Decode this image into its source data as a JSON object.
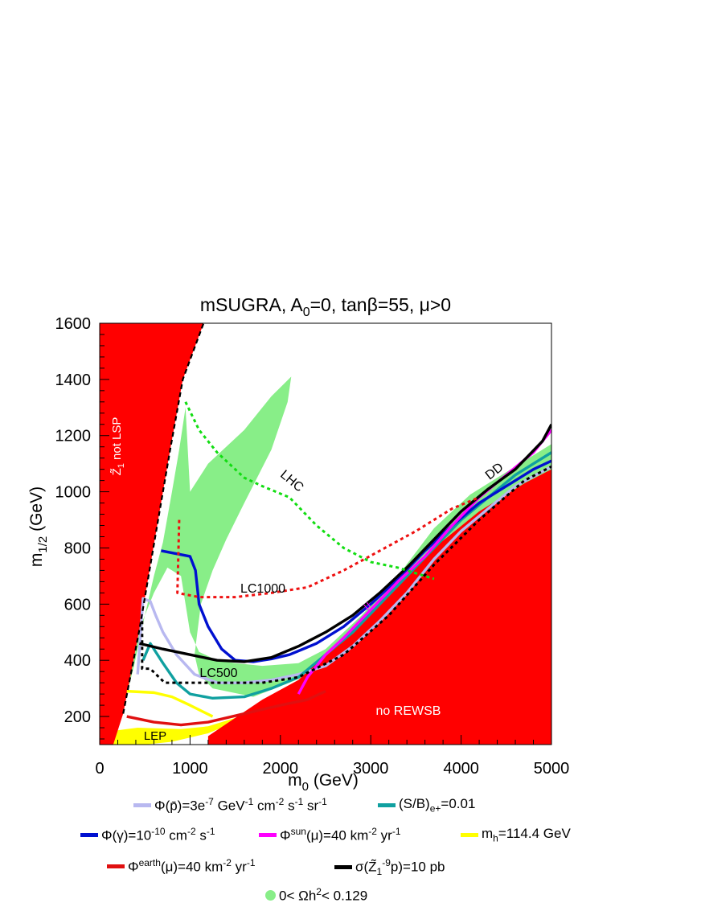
{
  "chart_data": {
    "type": "line",
    "title": "mSUGRA, A",
    "title_sub": "0",
    "title_rest": "=0, tanβ=55, μ>0",
    "xlabel": "m",
    "xlabel_sub": "0",
    "xlabel_rest": " (GeV)",
    "ylabel": "m",
    "ylabel_sub": "1/2",
    "ylabel_rest": " (GeV)",
    "xlim": [
      0,
      5000
    ],
    "ylim": [
      100,
      1600
    ],
    "xticks": [
      0,
      1000,
      2000,
      3000,
      4000,
      5000
    ],
    "yticks": [
      200,
      400,
      600,
      800,
      1000,
      1200,
      1400,
      1600
    ],
    "region_labels": {
      "lsp": "Z̃",
      "lsp_sub": "1",
      "lsp_rest": " not LSP",
      "rewsb": "no REWSB",
      "lep": "LEP",
      "lhc": "LHC",
      "lc1000": "LC1000",
      "lc500": "LC500",
      "dd": "DD",
      "mu": "μ"
    },
    "colors": {
      "excluded": "#ff0000",
      "relic": "#88ee88",
      "lep": "#ffff00",
      "pbar": "#b8b8f0",
      "sb": "#10a0a0",
      "gamma": "#0010d0",
      "musun": "#ff00ff",
      "mh": "#ffff00",
      "muearth": "#e01010",
      "dd": "#000000",
      "lhc": "#11dd11",
      "lc1000": "#ee1010",
      "lc500": "#000000"
    },
    "excluded_lsp": [
      [
        0,
        100
      ],
      [
        150,
        100
      ],
      [
        260,
        210
      ],
      [
        440,
        510
      ],
      [
        620,
        850
      ],
      [
        780,
        1150
      ],
      [
        920,
        1400
      ],
      [
        1150,
        1600
      ],
      [
        0,
        1600
      ]
    ],
    "excluded_rewsb": [
      [
        1200,
        130
      ],
      [
        1800,
        260
      ],
      [
        2200,
        330
      ],
      [
        2700,
        480
      ],
      [
        3200,
        640
      ],
      [
        3700,
        800
      ],
      [
        4200,
        930
      ],
      [
        4700,
        1030
      ],
      [
        5000,
        1080
      ],
      [
        5000,
        100
      ],
      [
        1200,
        100
      ]
    ],
    "lep_region": [
      [
        130,
        100
      ],
      [
        180,
        150
      ],
      [
        420,
        160
      ],
      [
        900,
        155
      ],
      [
        1200,
        165
      ],
      [
        1700,
        215
      ],
      [
        2200,
        280
      ],
      [
        2700,
        420
      ],
      [
        3200,
        600
      ],
      [
        3000,
        580
      ],
      [
        2500,
        350
      ],
      [
        2000,
        250
      ],
      [
        1500,
        180
      ],
      [
        1200,
        140
      ],
      [
        800,
        110
      ],
      [
        500,
        100
      ]
    ],
    "relic_main": [
      [
        240,
        200
      ],
      [
        380,
        380
      ],
      [
        500,
        560
      ],
      [
        600,
        700
      ],
      [
        700,
        820
      ],
      [
        800,
        1000
      ],
      [
        880,
        1150
      ],
      [
        950,
        1300
      ],
      [
        1000,
        1000
      ],
      [
        1200,
        1100
      ],
      [
        1600,
        1220
      ],
      [
        1900,
        1340
      ],
      [
        2120,
        1410
      ],
      [
        2080,
        1320
      ],
      [
        1900,
        1150
      ],
      [
        1600,
        960
      ],
      [
        1400,
        830
      ],
      [
        1250,
        720
      ],
      [
        1120,
        600
      ],
      [
        1050,
        420
      ],
      [
        1100,
        350
      ],
      [
        1250,
        300
      ],
      [
        1700,
        270
      ],
      [
        2100,
        320
      ],
      [
        2400,
        360
      ],
      [
        2900,
        490
      ],
      [
        3300,
        620
      ],
      [
        3700,
        770
      ],
      [
        4100,
        890
      ],
      [
        4500,
        980
      ],
      [
        5000,
        1080
      ],
      [
        5000,
        1170
      ],
      [
        4500,
        1070
      ],
      [
        4100,
        990
      ],
      [
        3700,
        870
      ],
      [
        3300,
        700
      ],
      [
        2900,
        560
      ],
      [
        2500,
        440
      ],
      [
        2200,
        390
      ],
      [
        1800,
        380
      ],
      [
        1500,
        390
      ],
      [
        1300,
        400
      ],
      [
        1100,
        430
      ],
      [
        1000,
        500
      ],
      [
        900,
        700
      ],
      [
        750,
        730
      ],
      [
        600,
        640
      ],
      [
        450,
        520
      ],
      [
        300,
        280
      ],
      [
        230,
        200
      ]
    ],
    "series": [
      {
        "key": "pbar",
        "dash": false,
        "points": [
          [
            420,
            350
          ],
          [
            480,
            620
          ],
          [
            560,
            610
          ],
          [
            620,
            560
          ],
          [
            700,
            500
          ],
          [
            850,
            420
          ],
          [
            1050,
            350
          ],
          [
            1300,
            320
          ],
          [
            1600,
            320
          ],
          [
            1900,
            330
          ],
          [
            2200,
            350
          ],
          [
            2500,
            380
          ],
          [
            2800,
            450
          ],
          [
            3100,
            540
          ],
          [
            3400,
            640
          ],
          [
            3700,
            760
          ],
          [
            4000,
            860
          ],
          [
            4300,
            940
          ],
          [
            4600,
            1020
          ],
          [
            5000,
            1090
          ]
        ]
      },
      {
        "key": "sb",
        "dash": false,
        "points": [
          [
            480,
            400
          ],
          [
            560,
            460
          ],
          [
            700,
            390
          ],
          [
            850,
            320
          ],
          [
            1000,
            280
          ],
          [
            1250,
            265
          ],
          [
            1600,
            270
          ],
          [
            1900,
            300
          ],
          [
            2200,
            340
          ],
          [
            2500,
            420
          ],
          [
            2800,
            500
          ],
          [
            3100,
            600
          ],
          [
            3400,
            700
          ],
          [
            3700,
            800
          ],
          [
            4000,
            900
          ],
          [
            4300,
            980
          ],
          [
            4600,
            1060
          ],
          [
            5000,
            1140
          ]
        ]
      },
      {
        "key": "gamma",
        "dash": false,
        "points": [
          [
            680,
            790
          ],
          [
            1000,
            770
          ],
          [
            1060,
            720
          ],
          [
            1100,
            600
          ],
          [
            1200,
            520
          ],
          [
            1350,
            440
          ],
          [
            1500,
            400
          ],
          [
            1700,
            395
          ],
          [
            1900,
            405
          ],
          [
            2100,
            420
          ],
          [
            2400,
            460
          ],
          [
            2700,
            520
          ],
          [
            3000,
            600
          ],
          [
            3300,
            690
          ],
          [
            3600,
            790
          ],
          [
            3900,
            880
          ],
          [
            4200,
            960
          ],
          [
            4500,
            1020
          ],
          [
            4800,
            1080
          ],
          [
            5000,
            1110
          ]
        ]
      },
      {
        "key": "musun",
        "dash": false,
        "points": [
          [
            2200,
            280
          ],
          [
            2300,
            340
          ],
          [
            2500,
            420
          ],
          [
            2700,
            480
          ],
          [
            3000,
            580
          ],
          [
            3300,
            680
          ],
          [
            3600,
            770
          ],
          [
            3900,
            880
          ],
          [
            4200,
            980
          ],
          [
            4500,
            1060
          ],
          [
            4800,
            1140
          ],
          [
            5000,
            1220
          ]
        ]
      },
      {
        "key": "mh",
        "dash": false,
        "points": [
          [
            300,
            290
          ],
          [
            600,
            285
          ],
          [
            800,
            270
          ],
          [
            1000,
            240
          ],
          [
            1250,
            200
          ]
        ]
      },
      {
        "key": "muearth",
        "dash": false,
        "points": [
          [
            300,
            200
          ],
          [
            600,
            180
          ],
          [
            900,
            170
          ],
          [
            1200,
            180
          ],
          [
            1600,
            210
          ],
          [
            2000,
            240
          ],
          [
            2300,
            260
          ],
          [
            2500,
            290
          ]
        ]
      },
      {
        "key": "dd",
        "dash": false,
        "points": [
          [
            440,
            460
          ],
          [
            700,
            440
          ],
          [
            1000,
            420
          ],
          [
            1300,
            400
          ],
          [
            1600,
            395
          ],
          [
            1900,
            410
          ],
          [
            2200,
            450
          ],
          [
            2500,
            500
          ],
          [
            2800,
            560
          ],
          [
            3100,
            640
          ],
          [
            3400,
            730
          ],
          [
            3700,
            830
          ],
          [
            4000,
            930
          ],
          [
            4300,
            1010
          ],
          [
            4600,
            1080
          ],
          [
            4900,
            1180
          ],
          [
            5000,
            1240
          ]
        ]
      },
      {
        "key": "lhc",
        "dash": true,
        "points": [
          [
            950,
            1320
          ],
          [
            1100,
            1220
          ],
          [
            1300,
            1140
          ],
          [
            1600,
            1050
          ],
          [
            1800,
            1020
          ],
          [
            2100,
            980
          ],
          [
            2400,
            880
          ],
          [
            2700,
            800
          ],
          [
            3000,
            750
          ],
          [
            3300,
            730
          ],
          [
            3700,
            690
          ]
        ]
      },
      {
        "key": "lc1000",
        "dash": true,
        "points": [
          [
            880,
            900
          ],
          [
            860,
            640
          ],
          [
            1100,
            625
          ],
          [
            1500,
            625
          ],
          [
            1900,
            640
          ],
          [
            2300,
            660
          ],
          [
            2700,
            720
          ],
          [
            3100,
            790
          ],
          [
            3500,
            860
          ],
          [
            3900,
            940
          ],
          [
            4200,
            980
          ]
        ]
      },
      {
        "key": "lc500",
        "dash": true,
        "points": [
          [
            470,
            540
          ],
          [
            470,
            370
          ],
          [
            560,
            370
          ],
          [
            720,
            320
          ],
          [
            1000,
            320
          ],
          [
            1400,
            320
          ],
          [
            1800,
            320
          ],
          [
            2200,
            340
          ],
          [
            2700,
            420
          ],
          [
            3200,
            560
          ],
          [
            3700,
            740
          ],
          [
            4200,
            900
          ],
          [
            4700,
            1040
          ],
          [
            5000,
            1090
          ]
        ]
      }
    ]
  },
  "legend": [
    {
      "key": "pbar",
      "label": "Φ(p̄)=3e",
      "sup": "-7",
      "rest": " GeV",
      "sup2": "-1",
      "rest2": " cm",
      "sup3": "-2",
      "rest3": " s",
      "sup4": "-1",
      "rest4": " sr",
      "sup5": "-1"
    },
    {
      "key": "sb",
      "label": "(S/B)",
      "sub": "e+",
      "rest": "=0.01"
    },
    {
      "key": "gamma",
      "label": "Φ(γ)=10",
      "sup": "-10",
      "rest": " cm",
      "sup2": "-2",
      "rest2": " s",
      "sup3": "-1"
    },
    {
      "key": "musun",
      "label": "Φ",
      "sup": "sun",
      "rest": "(μ)=40 km",
      "sup2": "-2",
      "rest2": " yr",
      "sup3": "-1"
    },
    {
      "key": "mh",
      "label": "m",
      "sub": "h",
      "rest": "=114.4 GeV"
    },
    {
      "key": "muearth",
      "label": "Φ",
      "sup": "earth",
      "rest": "(μ)=40 km",
      "sup2": "-2",
      "rest2": " yr",
      "sup3": "-1"
    },
    {
      "key": "dd",
      "label": "σ(Z̃",
      "sub": "1",
      "rest": "p)=10",
      "sup": "-9",
      "rest2": " pb"
    },
    {
      "key": "relic",
      "label": "0< Ωh",
      "sup": "2",
      "rest": "< 0.129"
    }
  ]
}
